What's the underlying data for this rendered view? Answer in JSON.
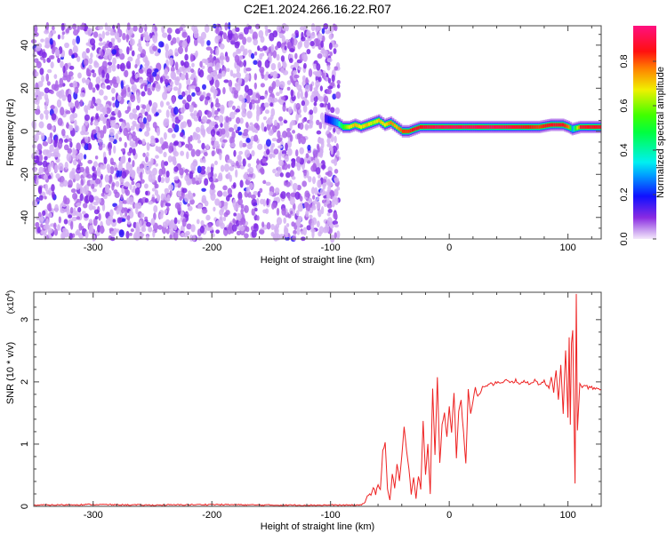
{
  "title": "C2E1.2024.266.16.22.R07",
  "chart_data": [
    {
      "type": "heatmap",
      "title": "C2E1.2024.266.16.22.R07",
      "xlabel": "Height of straight line (km)",
      "ylabel": "Frequency (Hz)",
      "xlim": [
        -350,
        128
      ],
      "ylim": [
        -50,
        49
      ],
      "xticks": [
        -300,
        -200,
        -100,
        0,
        100
      ],
      "yticks": [
        -40,
        -20,
        0,
        20,
        40
      ],
      "colorbar": {
        "label": "Normalized spectral amplitude",
        "range": [
          0,
          0.96
        ],
        "ticks": [
          "0.0",
          "0.2",
          "0.4",
          "0.6",
          "0.8"
        ]
      },
      "noise_region": {
        "x_range": [
          -350,
          -93
        ],
        "typical_amplitude": 0.08
      },
      "ridge": {
        "x": [
          -105,
          -95,
          -90,
          -85,
          -80,
          -75,
          -70,
          -65,
          -60,
          -55,
          -50,
          -45,
          -40,
          -35,
          -30,
          -25,
          -20,
          -10,
          0,
          10,
          20,
          40,
          60,
          75,
          85,
          95,
          100,
          103,
          110,
          120,
          128
        ],
        "freq_hz": [
          6,
          4,
          2,
          2,
          3,
          2,
          3,
          4,
          5,
          3,
          4,
          2,
          0,
          0,
          1,
          2,
          2,
          2,
          2,
          2,
          2,
          2,
          2,
          2,
          3,
          3,
          2,
          1,
          2,
          2,
          2
        ],
        "amplitude": [
          0.15,
          0.3,
          0.55,
          0.7,
          0.75,
          0.7,
          0.75,
          0.65,
          0.75,
          0.7,
          0.8,
          0.75,
          0.85,
          0.85,
          0.9,
          0.9,
          0.92,
          0.95,
          0.95,
          0.95,
          0.95,
          0.95,
          0.9,
          0.85,
          0.9,
          0.9,
          0.8,
          0.3,
          0.9,
          0.9,
          0.9
        ]
      }
    },
    {
      "type": "line",
      "xlabel": "Height of straight line (km)",
      "ylabel": "SNR (10 * v/v)",
      "y_multiplier": "(x10",
      "y_multiplier_exp": "4",
      "y_multiplier_close": ")",
      "xlim": [
        -350,
        128
      ],
      "ylim": [
        0,
        3.44
      ],
      "xticks": [
        -300,
        -200,
        -100,
        0,
        100
      ],
      "yticks": [
        0,
        1,
        2,
        3
      ],
      "color": "#ee2222",
      "x": [
        -350,
        -300,
        -250,
        -200,
        -150,
        -100,
        -80,
        -78,
        -76,
        -74,
        -72,
        -70,
        -68,
        -66,
        -64,
        -62,
        -60,
        -58,
        -56,
        -54,
        -52,
        -50,
        -48,
        -46,
        -44,
        -42,
        -40,
        -38,
        -36,
        -34,
        -32,
        -30,
        -28,
        -26,
        -24,
        -22,
        -20,
        -18,
        -16,
        -14,
        -12,
        -10,
        -8,
        -6,
        -4,
        -2,
        0,
        2,
        4,
        6,
        8,
        10,
        12,
        14,
        16,
        18,
        20,
        22,
        24,
        26,
        28,
        30,
        32,
        34,
        36,
        38,
        40,
        44,
        48,
        52,
        56,
        60,
        64,
        68,
        72,
        76,
        80,
        84,
        86,
        88,
        90,
        92,
        94,
        96,
        98,
        100,
        101,
        102,
        103,
        104,
        105,
        106,
        107,
        108,
        110,
        112,
        116,
        120,
        124,
        128
      ],
      "y": [
        0.02,
        0.03,
        0.02,
        0.03,
        0.02,
        0.02,
        0.02,
        0.02,
        0.02,
        0.03,
        0.05,
        0.1,
        0.2,
        0.15,
        0.3,
        0.2,
        0.35,
        0.3,
        0.9,
        1.0,
        0.3,
        0.1,
        0.5,
        0.3,
        0.7,
        0.4,
        0.8,
        1.25,
        0.9,
        0.6,
        0.2,
        0.45,
        0.1,
        0.5,
        0.3,
        1.4,
        0.5,
        1.0,
        0.2,
        1.9,
        0.8,
        2.1,
        0.7,
        1.3,
        1.5,
        1.1,
        1.6,
        1.2,
        1.85,
        0.8,
        1.5,
        1.7,
        1.2,
        0.7,
        1.9,
        1.5,
        1.7,
        1.9,
        1.75,
        1.8,
        1.95,
        1.9,
        1.95,
        1.97,
        1.95,
        1.98,
        2.0,
        1.97,
        2.02,
        1.98,
        2.03,
        1.97,
        2.0,
        1.98,
        2.02,
        1.97,
        2.0,
        1.9,
        2.1,
        1.85,
        2.2,
        1.7,
        2.3,
        1.5,
        2.5,
        1.4,
        2.7,
        1.3,
        2.6,
        2.85,
        1.6,
        0.35,
        3.44,
        1.2,
        1.95,
        1.93,
        1.92,
        1.9,
        1.89,
        1.88
      ]
    }
  ]
}
